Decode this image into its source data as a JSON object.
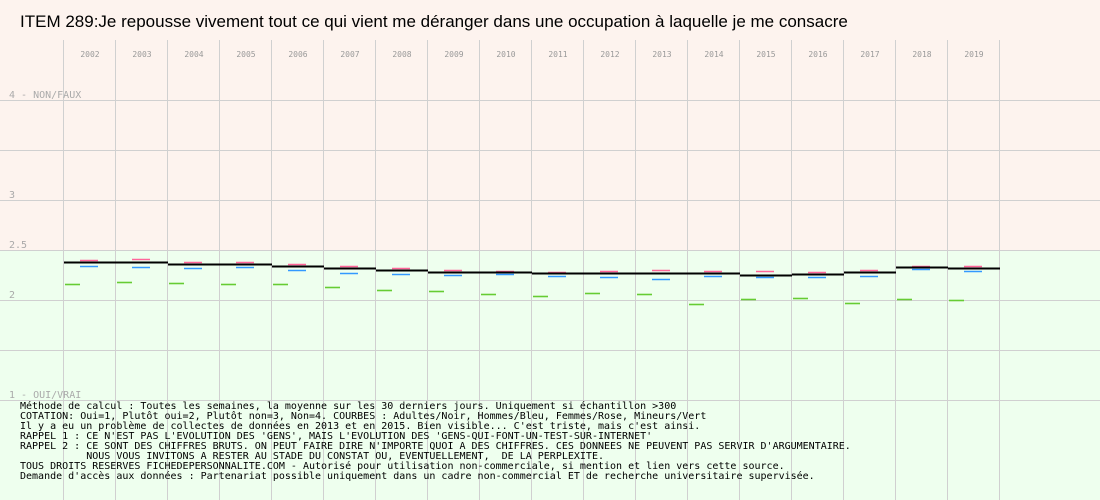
{
  "title": "ITEM 289:Je repousse vivement tout ce qui vient me déranger dans une occupation à laquelle je me consacre",
  "chart_data": {
    "type": "line",
    "categories": [
      "2002",
      "2003",
      "2004",
      "2005",
      "2006",
      "2007",
      "2008",
      "2009",
      "2010",
      "2011",
      "2012",
      "2013",
      "2014",
      "2015",
      "2016",
      "2017",
      "2018",
      "2019"
    ],
    "y_range": [
      1,
      4
    ],
    "y_labels": [
      {
        "value": 4,
        "text": "4 - NON/FAUX"
      },
      {
        "value": 3,
        "text": "3"
      },
      {
        "value": 2.5,
        "text": "2.5"
      },
      {
        "value": 2,
        "text": "2"
      },
      {
        "value": 1,
        "text": "1 - OUI/VRAI"
      }
    ],
    "zones": [
      {
        "from": 2.5,
        "to": 4,
        "color": "#fdf3ee"
      },
      {
        "from": 1,
        "to": 2.5,
        "color": "#eeffee"
      }
    ],
    "grid": true,
    "series": [
      {
        "name": "Adultes",
        "color": "#000000",
        "values": [
          2.38,
          2.38,
          2.36,
          2.36,
          2.34,
          2.32,
          2.3,
          2.28,
          2.28,
          2.27,
          2.27,
          2.27,
          2.27,
          2.25,
          2.26,
          2.28,
          2.33,
          2.32
        ]
      },
      {
        "name": "Hommes",
        "color": "#3399ff",
        "values": [
          2.36,
          2.35,
          2.34,
          2.35,
          2.32,
          2.29,
          2.28,
          2.27,
          2.28,
          2.26,
          2.25,
          2.23,
          2.26,
          2.25,
          2.25,
          2.26,
          2.33,
          2.31
        ]
      },
      {
        "name": "Femmes",
        "color": "#ff6699",
        "values": [
          2.39,
          2.4,
          2.37,
          2.37,
          2.35,
          2.33,
          2.31,
          2.29,
          2.28,
          2.27,
          2.28,
          2.29,
          2.28,
          2.28,
          2.27,
          2.29,
          2.33,
          2.33
        ]
      },
      {
        "name": "Mineurs",
        "color": "#66cc33",
        "values": [
          2.16,
          2.18,
          2.17,
          2.16,
          2.16,
          2.13,
          2.1,
          2.09,
          2.06,
          2.04,
          2.07,
          2.06,
          1.96,
          2.01,
          2.02,
          1.97,
          2.01,
          2.0
        ]
      }
    ]
  },
  "notes": [
    "Méthode de calcul : Toutes les semaines, la moyenne sur les 30 derniers jours. Uniquement si échantillon >300",
    "COTATION: Oui=1, Plutôt oui=2, Plutôt non=3, Non=4. COURBES : Adultes/Noir, Hommes/Bleu, Femmes/Rose, Mineurs/Vert",
    "Il y a eu un problème de collectes de données en 2013 et en 2015. Bien visible... C'est triste, mais c'est ainsi.",
    "RAPPEL 1 : CE N'EST PAS L'EVOLUTION DES 'GENS', MAIS L'EVOLUTION DES 'GENS-QUI-FONT-UN-TEST-SUR-INTERNET'",
    "RAPPEL 2 : CE SONT DES CHIFFRES BRUTS. ON PEUT FAIRE DIRE N'IMPORTE QUOI A DES CHIFFRES. CES DONNEES NE PEUVENT PAS SERVIR D'ARGUMENTAIRE.",
    "           NOUS VOUS INVITONS A RESTER AU STADE DU CONSTAT OU, EVENTUELLEMENT,  DE LA PERPLEXITE.",
    "TOUS DROITS RESERVES FICHEDEPERSONNALITE.COM - Autorisé pour utilisation non-commerciale, si mention et lien vers cette source.",
    "Demande d'accès aux données : Partenariat possible uniquement dans un cadre non-commercial ET de recherche universitaire supervisée."
  ]
}
